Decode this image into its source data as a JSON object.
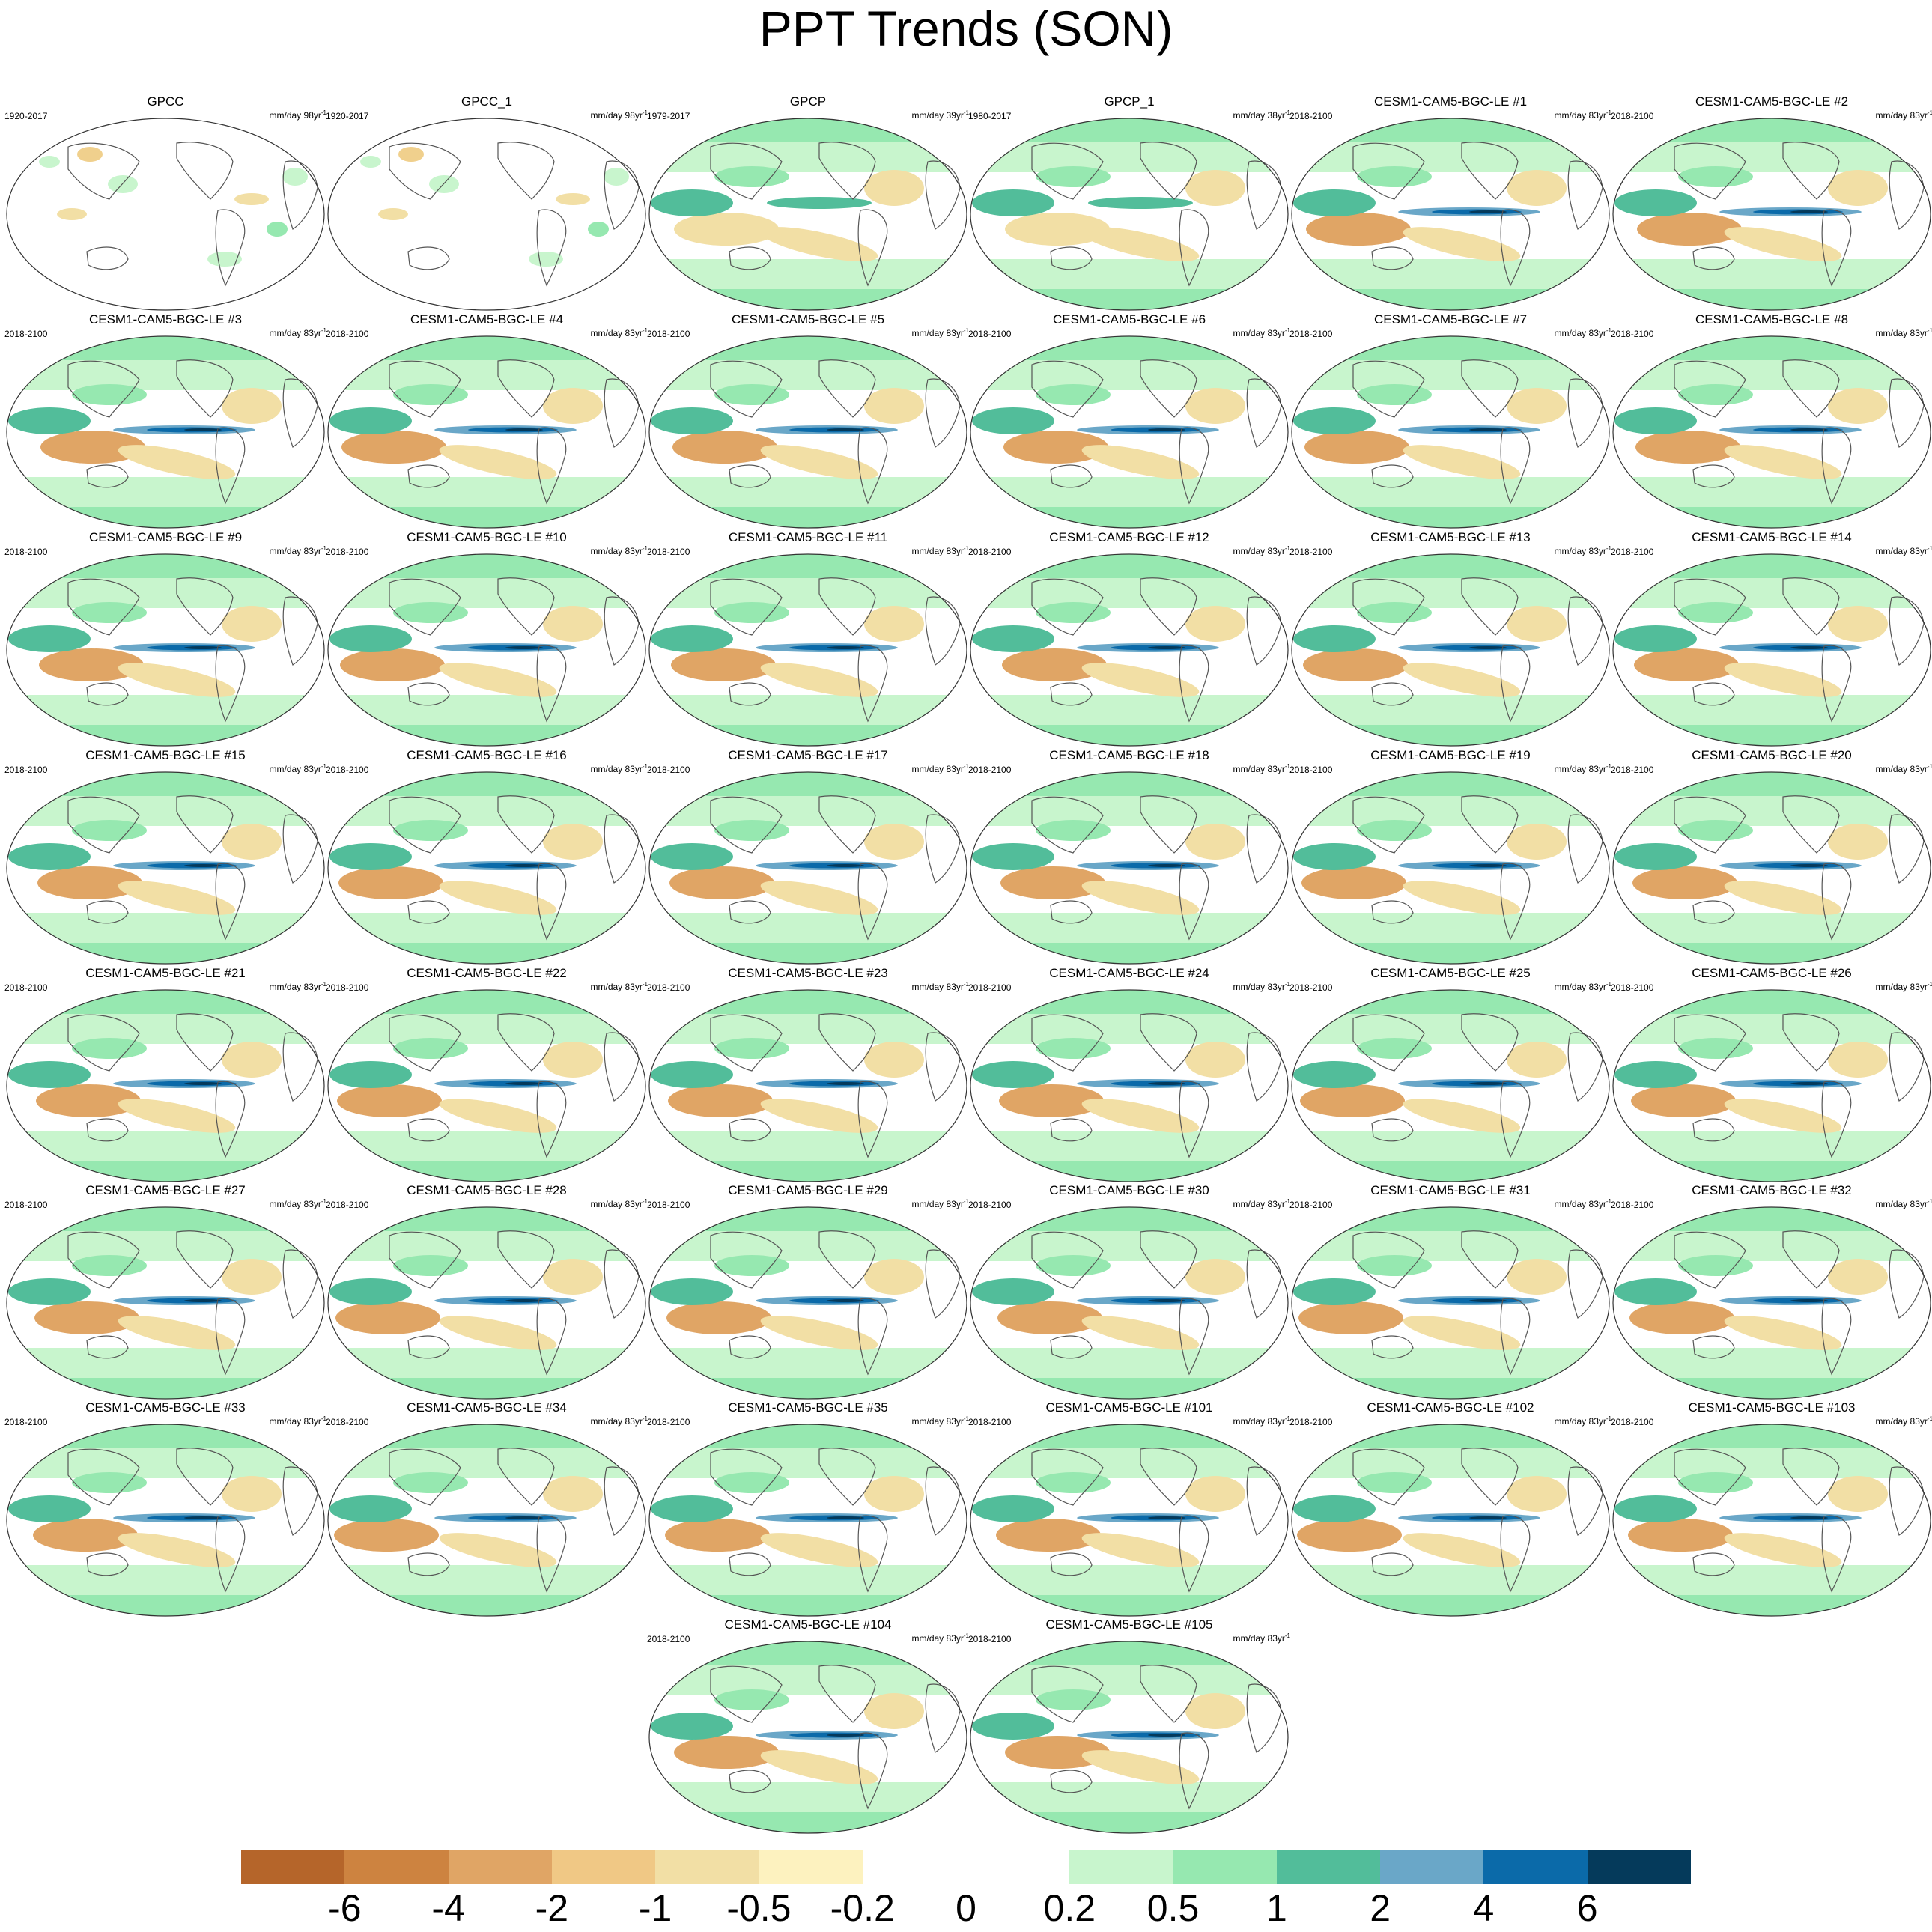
{
  "title": "PPT Trends (SON)",
  "units_text": "mm/day",
  "panels": [
    {
      "name": "GPCC",
      "period": "1920-2017",
      "trend_len": "98yr",
      "kind": "gpcc"
    },
    {
      "name": "GPCC_1",
      "period": "1920-2017",
      "trend_len": "98yr",
      "kind": "gpcc"
    },
    {
      "name": "GPCP",
      "period": "1979-2017",
      "trend_len": "39yr",
      "kind": "gpcp"
    },
    {
      "name": "GPCP_1",
      "period": "1980-2017",
      "trend_len": "38yr",
      "kind": "gpcp"
    },
    {
      "name": "CESM1-CAM5-BGC-LE #1",
      "period": "2018-2100",
      "trend_len": "83yr",
      "kind": "model"
    },
    {
      "name": "CESM1-CAM5-BGC-LE #2",
      "period": "2018-2100",
      "trend_len": "83yr",
      "kind": "model"
    },
    {
      "name": "CESM1-CAM5-BGC-LE #3",
      "period": "2018-2100",
      "trend_len": "83yr",
      "kind": "model"
    },
    {
      "name": "CESM1-CAM5-BGC-LE #4",
      "period": "2018-2100",
      "trend_len": "83yr",
      "kind": "model"
    },
    {
      "name": "CESM1-CAM5-BGC-LE #5",
      "period": "2018-2100",
      "trend_len": "83yr",
      "kind": "model"
    },
    {
      "name": "CESM1-CAM5-BGC-LE #6",
      "period": "2018-2100",
      "trend_len": "83yr",
      "kind": "model"
    },
    {
      "name": "CESM1-CAM5-BGC-LE #7",
      "period": "2018-2100",
      "trend_len": "83yr",
      "kind": "model"
    },
    {
      "name": "CESM1-CAM5-BGC-LE #8",
      "period": "2018-2100",
      "trend_len": "83yr",
      "kind": "model"
    },
    {
      "name": "CESM1-CAM5-BGC-LE #9",
      "period": "2018-2100",
      "trend_len": "83yr",
      "kind": "model"
    },
    {
      "name": "CESM1-CAM5-BGC-LE #10",
      "period": "2018-2100",
      "trend_len": "83yr",
      "kind": "model"
    },
    {
      "name": "CESM1-CAM5-BGC-LE #11",
      "period": "2018-2100",
      "trend_len": "83yr",
      "kind": "model"
    },
    {
      "name": "CESM1-CAM5-BGC-LE #12",
      "period": "2018-2100",
      "trend_len": "83yr",
      "kind": "model"
    },
    {
      "name": "CESM1-CAM5-BGC-LE #13",
      "period": "2018-2100",
      "trend_len": "83yr",
      "kind": "model"
    },
    {
      "name": "CESM1-CAM5-BGC-LE #14",
      "period": "2018-2100",
      "trend_len": "83yr",
      "kind": "model"
    },
    {
      "name": "CESM1-CAM5-BGC-LE #15",
      "period": "2018-2100",
      "trend_len": "83yr",
      "kind": "model"
    },
    {
      "name": "CESM1-CAM5-BGC-LE #16",
      "period": "2018-2100",
      "trend_len": "83yr",
      "kind": "model"
    },
    {
      "name": "CESM1-CAM5-BGC-LE #17",
      "period": "2018-2100",
      "trend_len": "83yr",
      "kind": "model"
    },
    {
      "name": "CESM1-CAM5-BGC-LE #18",
      "period": "2018-2100",
      "trend_len": "83yr",
      "kind": "model"
    },
    {
      "name": "CESM1-CAM5-BGC-LE #19",
      "period": "2018-2100",
      "trend_len": "83yr",
      "kind": "model"
    },
    {
      "name": "CESM1-CAM5-BGC-LE #20",
      "period": "2018-2100",
      "trend_len": "83yr",
      "kind": "model"
    },
    {
      "name": "CESM1-CAM5-BGC-LE #21",
      "period": "2018-2100",
      "trend_len": "83yr",
      "kind": "model"
    },
    {
      "name": "CESM1-CAM5-BGC-LE #22",
      "period": "2018-2100",
      "trend_len": "83yr",
      "kind": "model"
    },
    {
      "name": "CESM1-CAM5-BGC-LE #23",
      "period": "2018-2100",
      "trend_len": "83yr",
      "kind": "model"
    },
    {
      "name": "CESM1-CAM5-BGC-LE #24",
      "period": "2018-2100",
      "trend_len": "83yr",
      "kind": "model"
    },
    {
      "name": "CESM1-CAM5-BGC-LE #25",
      "period": "2018-2100",
      "trend_len": "83yr",
      "kind": "model"
    },
    {
      "name": "CESM1-CAM5-BGC-LE #26",
      "period": "2018-2100",
      "trend_len": "83yr",
      "kind": "model"
    },
    {
      "name": "CESM1-CAM5-BGC-LE #27",
      "period": "2018-2100",
      "trend_len": "83yr",
      "kind": "model"
    },
    {
      "name": "CESM1-CAM5-BGC-LE #28",
      "period": "2018-2100",
      "trend_len": "83yr",
      "kind": "model"
    },
    {
      "name": "CESM1-CAM5-BGC-LE #29",
      "period": "2018-2100",
      "trend_len": "83yr",
      "kind": "model"
    },
    {
      "name": "CESM1-CAM5-BGC-LE #30",
      "period": "2018-2100",
      "trend_len": "83yr",
      "kind": "model"
    },
    {
      "name": "CESM1-CAM5-BGC-LE #31",
      "period": "2018-2100",
      "trend_len": "83yr",
      "kind": "model"
    },
    {
      "name": "CESM1-CAM5-BGC-LE #32",
      "period": "2018-2100",
      "trend_len": "83yr",
      "kind": "model"
    },
    {
      "name": "CESM1-CAM5-BGC-LE #33",
      "period": "2018-2100",
      "trend_len": "83yr",
      "kind": "model"
    },
    {
      "name": "CESM1-CAM5-BGC-LE #34",
      "period": "2018-2100",
      "trend_len": "83yr",
      "kind": "model"
    },
    {
      "name": "CESM1-CAM5-BGC-LE #35",
      "period": "2018-2100",
      "trend_len": "83yr",
      "kind": "model"
    },
    {
      "name": "CESM1-CAM5-BGC-LE #101",
      "period": "2018-2100",
      "trend_len": "83yr",
      "kind": "model"
    },
    {
      "name": "CESM1-CAM5-BGC-LE #102",
      "period": "2018-2100",
      "trend_len": "83yr",
      "kind": "model"
    },
    {
      "name": "CESM1-CAM5-BGC-LE #103",
      "period": "2018-2100",
      "trend_len": "83yr",
      "kind": "model"
    },
    {
      "name": "CESM1-CAM5-BGC-LE #104",
      "period": "2018-2100",
      "trend_len": "83yr",
      "kind": "model"
    },
    {
      "name": "CESM1-CAM5-BGC-LE #105",
      "period": "2018-2100",
      "trend_len": "83yr",
      "kind": "model"
    }
  ],
  "colorbar": {
    "colors": [
      "#b5652a",
      "#cd8340",
      "#e0a565",
      "#f0c885",
      "#f2dfa5",
      "#fdf2bf",
      "#ffffff",
      "#ffffff",
      "#c8f5cd",
      "#96e8b0",
      "#52bd9a",
      "#6aa7c8",
      "#0b6aa9",
      "#053a5b"
    ],
    "tick_labels": [
      "-6",
      "-4",
      "-2",
      "-1",
      "-0.5",
      "-0.2",
      "0",
      "0.2",
      "0.5",
      "1",
      "2",
      "4",
      "6"
    ]
  },
  "palette": {
    "land_dry": "#f0d08d",
    "ocean_light": "#c8f5cd",
    "ocean_mid": "#96e8b0",
    "teal": "#52bd9a",
    "blue": "#6aa7c8",
    "deep_blue": "#0b6aa9",
    "navy": "#053a5b",
    "dry": "#f2dfa5",
    "dry_strong": "#e0a565",
    "coast": "#555555"
  }
}
